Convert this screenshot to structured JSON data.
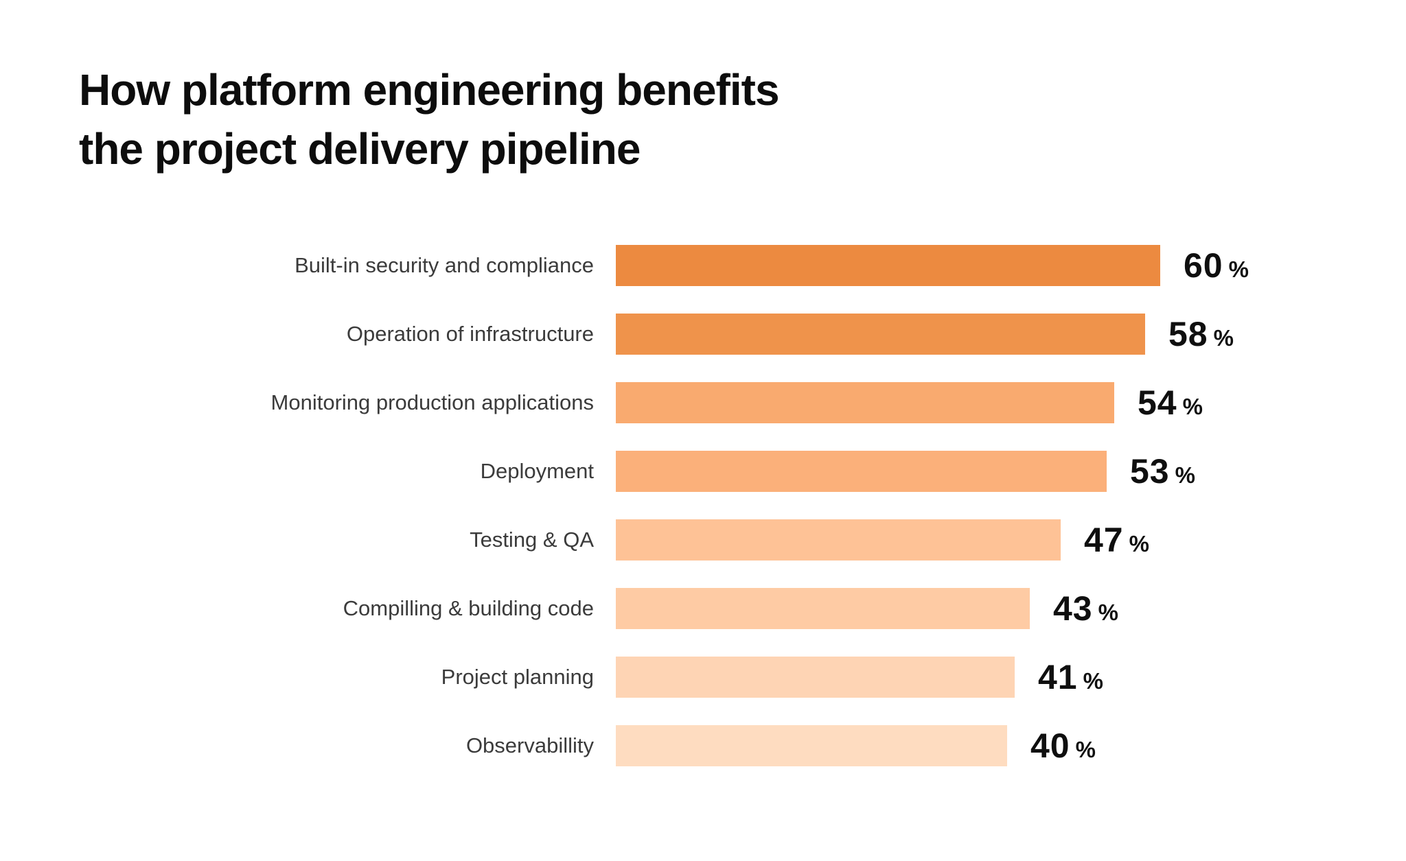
{
  "title": {
    "line1": "How platform engineering benefits",
    "line2": "the project delivery pipeline"
  },
  "chart_data": {
    "type": "bar",
    "orientation": "horizontal",
    "title": "How platform engineering benefits the project delivery pipeline",
    "categories": [
      "Built-in security and compliance",
      "Operation of infrastructure",
      "Monitoring production applications",
      "Deployment",
      "Testing & QA",
      "Compilling & building code",
      "Project planning",
      "Observabillity"
    ],
    "values": [
      60,
      58,
      54,
      53,
      47,
      43,
      41,
      40
    ],
    "unit": "%",
    "xlim": [
      0,
      60
    ],
    "grid": false,
    "legend": false,
    "value_labels_position": "right-of-bar",
    "bar_colors": [
      "#EC8A40",
      "#EF934B",
      "#F9AA6F",
      "#FBB07A",
      "#FEC296",
      "#FECBA4",
      "#FED4B4",
      "#FEDCC0"
    ]
  },
  "colors": {
    "background": "#ffffff",
    "title_text": "#0d0d0d",
    "category_label_text": "#3b3b3b",
    "value_text": "#0f0f0f"
  }
}
